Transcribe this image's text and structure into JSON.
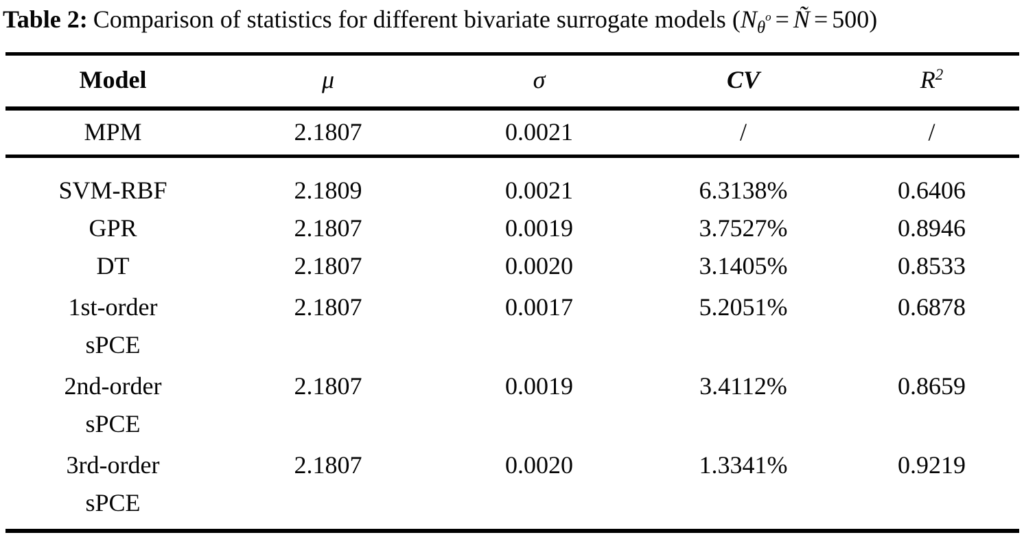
{
  "caption": {
    "label": "Table 2:",
    "body": "Comparison of statistics for different bivariate surrogate models",
    "math": {
      "open": "(",
      "N": "N",
      "N_sub": "θ",
      "N_sub_sup": "o",
      "eq1": "=",
      "N_tilde": "Ñ",
      "eq2": "=",
      "value": "500",
      "close": ")"
    }
  },
  "table": {
    "header": {
      "model": "Model",
      "mu": "μ",
      "sigma": "σ",
      "cv": "CV",
      "r2_base": "R",
      "r2_sup": "2"
    },
    "mpm_row": {
      "model": "MPM",
      "mu": "2.1807",
      "sigma": "0.0021",
      "cv": "/",
      "r2": "/"
    },
    "rows": [
      {
        "model": "SVM-RBF",
        "mu": "2.1809",
        "sigma": "0.0021",
        "cv": "6.3138%",
        "r2": "0.6406"
      },
      {
        "model": "GPR",
        "mu": "2.1807",
        "sigma": "0.0019",
        "cv": "3.7527%",
        "r2": "0.8946"
      },
      {
        "model": "DT",
        "mu": "2.1807",
        "sigma": "0.0020",
        "cv": "3.1405%",
        "r2": "0.8533"
      },
      {
        "model_line1": "1st-order",
        "model_line2": "sPCE",
        "mu": "2.1807",
        "sigma": "0.0017",
        "cv": "5.2051%",
        "r2": "0.6878"
      },
      {
        "model_line1": "2nd-order",
        "model_line2": "sPCE",
        "mu": "2.1807",
        "sigma": "0.0019",
        "cv": "3.4112%",
        "r2": "0.8659"
      },
      {
        "model_line1": "3rd-order",
        "model_line2": "sPCE",
        "mu": "2.1807",
        "sigma": "0.0020",
        "cv": "1.3341%",
        "r2": "0.9219"
      }
    ]
  }
}
